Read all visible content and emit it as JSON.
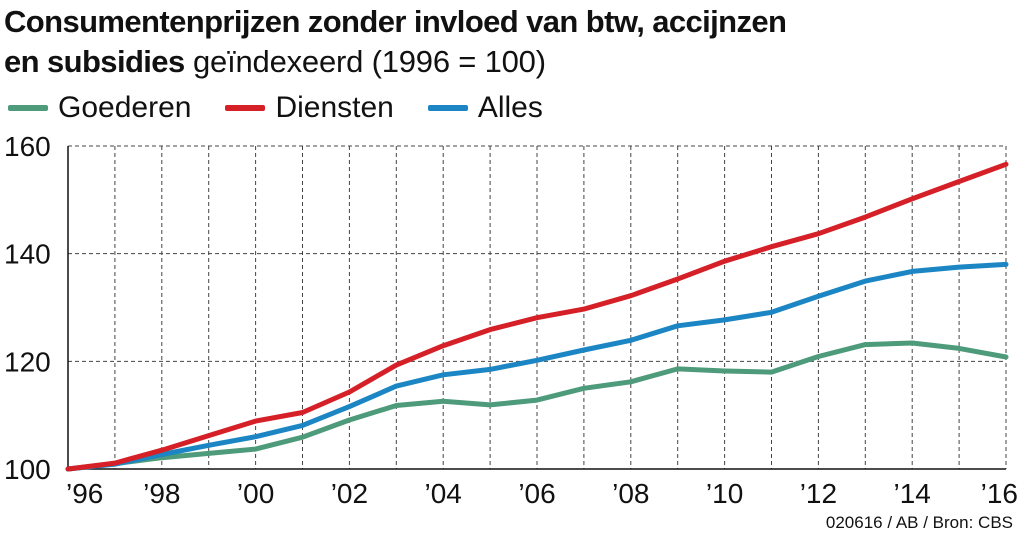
{
  "header": {
    "title_bold_line1": "Consumentenprijzen zonder invloed van btw, accijnzen",
    "title_bold_line2": "en subsidies",
    "subtitle": " geïndexeerd (1996 = 100)"
  },
  "legend": {
    "items": [
      {
        "label": "Goederen",
        "color": "#4e9b7b"
      },
      {
        "label": "Diensten",
        "color": "#d62028"
      },
      {
        "label": "Alles",
        "color": "#1b86c3"
      }
    ]
  },
  "footer": {
    "source": "020616 / AB / Bron: CBS"
  },
  "chart_data": {
    "type": "line",
    "title": "Consumentenprijzen zonder invloed van btw, accijnzen en subsidies",
    "subtitle": "geïndexeerd (1996 = 100)",
    "x": [
      1996,
      1997,
      1998,
      1999,
      2000,
      2001,
      2002,
      2003,
      2004,
      2005,
      2006,
      2007,
      2008,
      2009,
      2010,
      2011,
      2012,
      2013,
      2014,
      2015,
      2016
    ],
    "x_tick_labels": [
      "’96",
      "’98",
      "’00",
      "’02",
      "’04",
      "’06",
      "’08",
      "’10",
      "’12",
      "’14",
      "’16"
    ],
    "x_tick_values": [
      1996,
      1998,
      2000,
      2002,
      2004,
      2006,
      2008,
      2010,
      2012,
      2014,
      2016
    ],
    "y_tick_labels": [
      "100",
      "120",
      "140",
      "160"
    ],
    "y_tick_values": [
      100,
      120,
      140,
      160
    ],
    "xlim": [
      1996,
      2016
    ],
    "ylim": [
      100,
      160
    ],
    "grid": true,
    "legend_position": "top-left",
    "series": [
      {
        "name": "Goederen",
        "color": "#4e9b7b",
        "values": [
          100,
          101,
          102.1,
          102.9,
          103.7,
          105.9,
          109.1,
          111.8,
          112.6,
          111.9,
          112.8,
          115,
          116.2,
          118.6,
          118.2,
          118,
          120.9,
          123.1,
          123.4,
          122.4,
          120.8
        ]
      },
      {
        "name": "Diensten",
        "color": "#d62028",
        "values": [
          100,
          101.1,
          103.5,
          106.2,
          108.9,
          110.5,
          114.3,
          119.3,
          122.9,
          125.9,
          128.1,
          129.7,
          132.2,
          135.3,
          138.6,
          141.3,
          143.7,
          146.8,
          150.2,
          153.4,
          156.6
        ]
      },
      {
        "name": "Alles",
        "color": "#1b86c3",
        "values": [
          100,
          100.9,
          102.7,
          104.4,
          106,
          108.1,
          111.6,
          115.4,
          117.5,
          118.5,
          120.2,
          122.1,
          123.9,
          126.6,
          127.7,
          129.1,
          132.1,
          134.9,
          136.7,
          137.5,
          138
        ]
      }
    ]
  }
}
